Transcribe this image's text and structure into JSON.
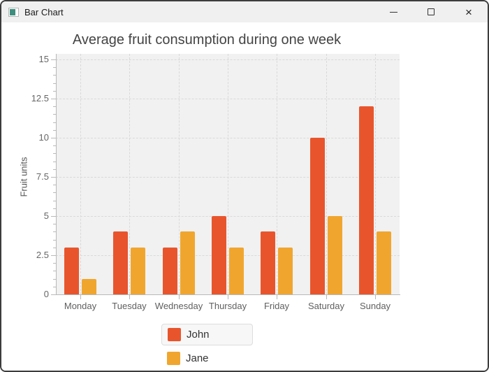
{
  "window": {
    "title": "Bar Chart",
    "icons": {
      "app": "app-window-icon",
      "minimize": "minimize-icon",
      "maximize": "maximize-icon",
      "close": "close-icon"
    },
    "controls": {
      "close_glyph": "×"
    }
  },
  "chart_data": {
    "type": "bar",
    "title": "Average fruit consumption during one week",
    "xlabel": "",
    "ylabel": "Fruit units",
    "categories": [
      "Monday",
      "Tuesday",
      "Wednesday",
      "Thursday",
      "Friday",
      "Saturday",
      "Sunday"
    ],
    "series": [
      {
        "name": "John",
        "color": "#e8552d",
        "values": [
          3,
          4,
          3,
          5,
          4,
          10,
          12
        ]
      },
      {
        "name": "Jane",
        "color": "#f0a62e",
        "values": [
          1,
          3,
          4,
          3,
          3,
          5,
          4
        ]
      }
    ],
    "ylim": [
      0,
      15
    ],
    "yticks": [
      0,
      2.5,
      5,
      7.5,
      10,
      12.5,
      15
    ],
    "minor_tick_interval": 0.5,
    "grid": "dashed",
    "legend_position": "bottom",
    "plot_background": "#f1f1f1",
    "gridline_color": "#d9d9d9",
    "axis_color": "#b9b9b9"
  }
}
